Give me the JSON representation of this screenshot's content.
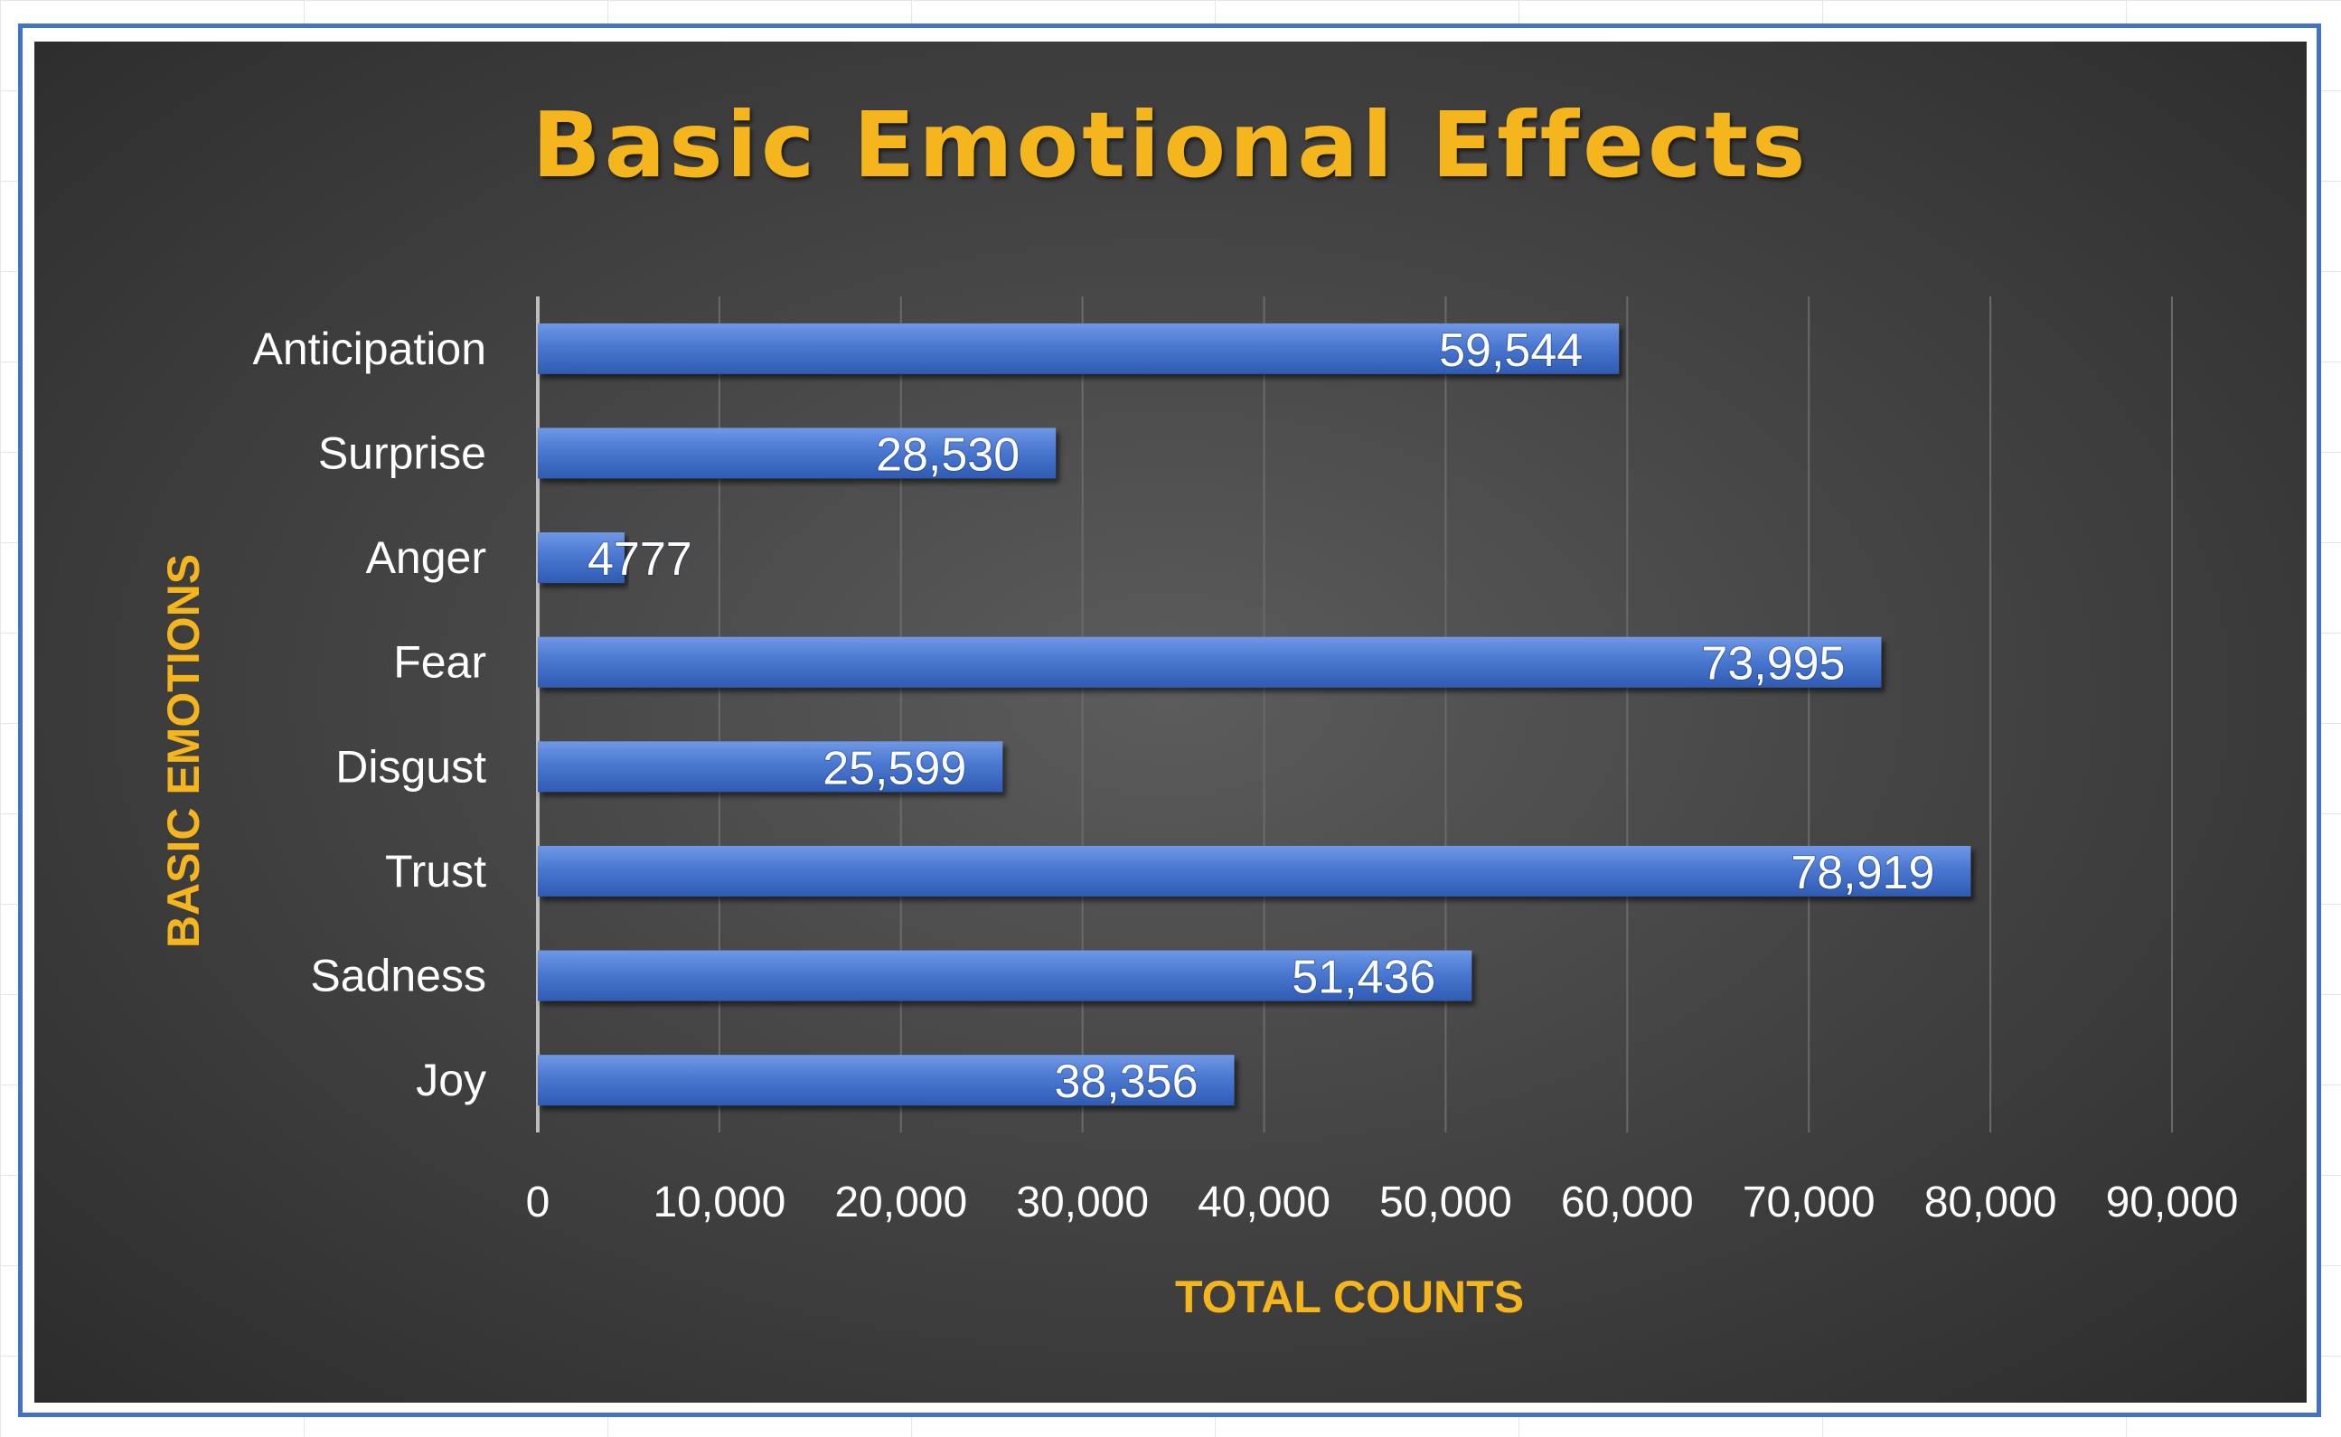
{
  "chart_data": {
    "type": "bar",
    "orientation": "horizontal",
    "title": "Basic Emotional Effects",
    "xlabel": "TOTAL COUNTS",
    "ylabel": "BASIC EMOTIONS",
    "categories": [
      "Joy",
      "Sadness",
      "Trust",
      "Disgust",
      "Fear",
      "Anger",
      "Surprise",
      "Anticipation"
    ],
    "values": [
      38356,
      51436,
      78919,
      25599,
      73995,
      4777,
      28530,
      59544
    ],
    "data_labels": [
      "38,356",
      "51,436",
      "78,919",
      "25,599",
      "73,995",
      "4777",
      "28,530",
      "59,544"
    ],
    "xlim": [
      0,
      90000
    ],
    "xticks": [
      0,
      10000,
      20000,
      30000,
      40000,
      50000,
      60000,
      70000,
      80000,
      90000
    ],
    "xtick_labels": [
      "0",
      "10,000",
      "20,000",
      "30,000",
      "40,000",
      "50,000",
      "60,000",
      "70,000",
      "80,000",
      "90,000"
    ],
    "grid": true,
    "legend": "none",
    "colors": {
      "bar": "#4a78d0",
      "title": "#f5b61d",
      "axis_titles": "#f5b61d",
      "labels": "#ffffff",
      "background": "#3f3f3f",
      "frame": "#4472c4"
    }
  }
}
